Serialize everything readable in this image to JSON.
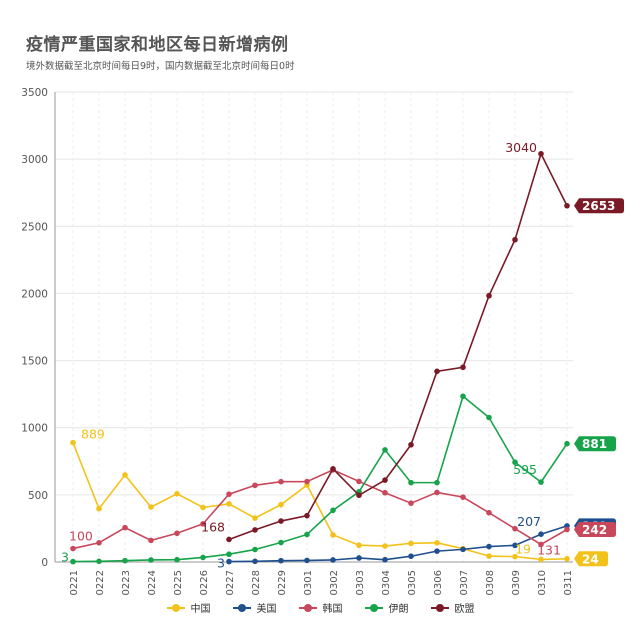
{
  "title": "疫情严重国家和地区每日新增病例",
  "subtitle": "境外数据截至北京时间每日9时，国内数据截至北京时间每日0时",
  "chart_data": {
    "type": "line",
    "categories": [
      "0221",
      "0222",
      "0223",
      "0224",
      "0225",
      "0226",
      "0227",
      "0228",
      "0229",
      "0301",
      "0302",
      "0303",
      "0304",
      "0305",
      "0306",
      "0307",
      "0308",
      "0309",
      "0310",
      "0311"
    ],
    "ylim": [
      0,
      3500
    ],
    "yticks": [
      0,
      500,
      1000,
      1500,
      2000,
      2500,
      3000,
      3500
    ],
    "grid": true,
    "legend_position": "bottom",
    "series": [
      {
        "name": "中国",
        "color": "#f3c21a",
        "values": [
          889,
          397,
          648,
          409,
          508,
          406,
          433,
          327,
          427,
          573,
          202,
          125,
          119,
          139,
          143,
          99,
          44,
          40,
          19,
          24
        ]
      },
      {
        "name": "美国",
        "color": "#1f4f8f",
        "values": [
          null,
          null,
          null,
          null,
          null,
          null,
          3,
          5,
          10,
          12,
          15,
          30,
          17,
          43,
          81,
          94,
          115,
          124,
          207,
          269
        ]
      },
      {
        "name": "韩国",
        "color": "#c8475a",
        "values": [
          100,
          143,
          256,
          161,
          214,
          284,
          505,
          571,
          598,
          599,
          686,
          600,
          516,
          438,
          518,
          483,
          367,
          248,
          131,
          242
        ]
      },
      {
        "name": "伊朗",
        "color": "#16a34a",
        "values": [
          3,
          5,
          10,
          15,
          17,
          34,
          58,
          93,
          145,
          205,
          385,
          523,
          835,
          591,
          591,
          1234,
          1076,
          743,
          595,
          881
        ]
      },
      {
        "name": "欧盟",
        "color": "#7a1a26",
        "values": [
          null,
          null,
          null,
          null,
          null,
          null,
          168,
          239,
          305,
          345,
          694,
          497,
          610,
          873,
          1420,
          1450,
          1983,
          2400,
          3040,
          2653
        ]
      }
    ],
    "annotations": [
      {
        "text": "889",
        "series": "中国",
        "index": 0,
        "color": "#f3c21a"
      },
      {
        "text": "19",
        "series": "中国",
        "index": 18,
        "color": "#f3c21a"
      },
      {
        "text": "3",
        "series": "美国",
        "index": 6,
        "color": "#1f4f8f"
      },
      {
        "text": "207",
        "series": "美国",
        "index": 18,
        "color": "#1f4f8f"
      },
      {
        "text": "100",
        "series": "韩国",
        "index": 0,
        "color": "#c8475a"
      },
      {
        "text": "131",
        "series": "韩国",
        "index": 18,
        "color": "#c8475a"
      },
      {
        "text": "3",
        "series": "伊朗",
        "index": 0,
        "color": "#16a34a"
      },
      {
        "text": "595",
        "series": "伊朗",
        "index": 18,
        "color": "#16a34a"
      },
      {
        "text": "168",
        "series": "欧盟",
        "index": 6,
        "color": "#7a1a26"
      },
      {
        "text": "3040",
        "series": "欧盟",
        "index": 18,
        "color": "#7a1a26"
      }
    ],
    "end_labels": [
      {
        "text": "2653",
        "series": "欧盟",
        "bg": "#7a1a26"
      },
      {
        "text": "881",
        "series": "伊朗",
        "bg": "#16a34a"
      },
      {
        "text": "269",
        "series": "美国",
        "bg": "#1f4f8f"
      },
      {
        "text": "242",
        "series": "韩国",
        "bg": "#c8475a"
      },
      {
        "text": "24",
        "series": "中国",
        "bg": "#f3c21a"
      }
    ]
  }
}
